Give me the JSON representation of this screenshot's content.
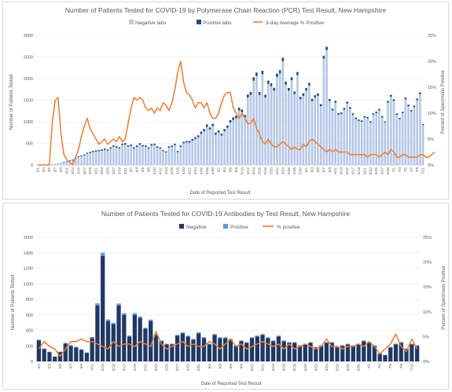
{
  "chart_data": [
    {
      "type": "bar",
      "title": "Number of Patients Tested for COVID-19 by Polymerase Chain Reaction (PCR) Test Result, New Hampshire",
      "xlabel": "Date of Reported Test Result",
      "ylabel": "Number of Patients Tested",
      "y2label": "Percent of Specimens Positive",
      "ylim": [
        0,
        3000
      ],
      "y2lim": [
        0,
        25
      ],
      "yticks": [
        "0",
        "500",
        "1000",
        "1500",
        "2000",
        "2500",
        "3000"
      ],
      "y2ticks": [
        "0%",
        "5%",
        "10%",
        "15%",
        "20%",
        "25%"
      ],
      "legend_position": "top",
      "series": [
        {
          "name": "Negative labs",
          "kind": "bar",
          "color": "#b4c7e7"
        },
        {
          "name": "Positive labs",
          "kind": "bar",
          "color": "#1f4e79"
        },
        {
          "name": "3-day Average % Positive",
          "kind": "line",
          "color": "#ed7d31"
        }
      ],
      "x": [
        "3/1",
        "3/2",
        "3/3",
        "3/4",
        "3/5",
        "3/6",
        "3/7",
        "3/8",
        "3/9",
        "3/10",
        "3/11",
        "3/12",
        "3/13",
        "3/14",
        "3/15",
        "3/16",
        "3/17",
        "3/18",
        "3/19",
        "3/20",
        "3/21",
        "3/22",
        "3/23",
        "3/24",
        "3/25",
        "3/26",
        "3/27",
        "3/28",
        "3/29",
        "3/30",
        "3/31",
        "4/1",
        "4/2",
        "4/3",
        "4/4",
        "4/5",
        "4/6",
        "4/7",
        "4/8",
        "4/9",
        "4/10",
        "4/11",
        "4/12",
        "4/13",
        "4/14",
        "4/15",
        "4/16",
        "4/17",
        "4/18",
        "4/19",
        "4/20",
        "4/21",
        "4/22",
        "4/23",
        "4/24",
        "4/25",
        "4/26",
        "4/27",
        "4/28",
        "4/29",
        "4/30",
        "5/1",
        "5/2",
        "5/3",
        "5/4",
        "5/5",
        "5/6",
        "5/7",
        "5/8",
        "5/9",
        "5/10",
        "5/11",
        "5/12",
        "5/13",
        "5/14",
        "5/15",
        "5/16",
        "5/17",
        "5/18",
        "5/19",
        "5/20",
        "5/21",
        "5/22",
        "5/23",
        "5/24",
        "5/25",
        "5/26",
        "5/27",
        "5/28",
        "5/29",
        "5/30",
        "5/31",
        "6/1",
        "6/2",
        "6/3",
        "6/4",
        "6/5",
        "6/6",
        "6/7",
        "6/8",
        "6/9",
        "6/10",
        "6/11",
        "6/12",
        "6/13",
        "6/14",
        "6/15",
        "6/16",
        "6/17",
        "6/18",
        "6/19",
        "6/20",
        "6/21",
        "6/22",
        "6/23",
        "6/24",
        "6/25",
        "6/26",
        "6/27",
        "6/28",
        "6/29",
        "6/30",
        "7/1",
        "7/2",
        "7/3",
        "7/4",
        "7/5",
        "7/6",
        "7/7",
        "7/8",
        "7/9",
        "7/10",
        "7/11"
      ],
      "x_tick_labels": [
        "3/1",
        "3/3",
        "3/5",
        "3/7",
        "3/9",
        "3/11",
        "3/13",
        "3/15",
        "3/17",
        "3/19",
        "3/21",
        "3/23",
        "3/25",
        "3/27",
        "3/29",
        "3/31",
        "4/2",
        "4/4",
        "4/6",
        "4/8",
        "4/10",
        "4/12",
        "4/14",
        "4/16",
        "4/18",
        "4/20",
        "4/22",
        "4/24",
        "4/26",
        "4/28",
        "4/30",
        "5/2",
        "5/4",
        "5/6",
        "5/8",
        "5/10",
        "5/12",
        "5/14",
        "5/16",
        "5/18",
        "5/20",
        "5/22",
        "5/24",
        "5/26",
        "5/28",
        "5/30",
        "6/1",
        "6/3",
        "6/5",
        "6/7",
        "6/9",
        "6/11",
        "6/13",
        "6/15",
        "6/17",
        "6/19",
        "6/21",
        "6/23",
        "6/25",
        "6/27",
        "6/29",
        "7/1",
        "7/3",
        "7/5",
        "7/7",
        "7/9",
        "7/11"
      ],
      "negative": [
        2,
        2,
        4,
        5,
        8,
        10,
        18,
        28,
        40,
        60,
        70,
        90,
        110,
        150,
        180,
        200,
        220,
        260,
        280,
        300,
        310,
        320,
        330,
        350,
        330,
        380,
        420,
        400,
        380,
        460,
        470,
        420,
        440,
        380,
        420,
        470,
        430,
        420,
        380,
        450,
        460,
        400,
        380,
        320,
        290,
        400,
        420,
        460,
        300,
        420,
        500,
        520,
        520,
        560,
        600,
        640,
        720,
        780,
        880,
        820,
        900,
        700,
        750,
        680,
        780,
        860,
        980,
        1040,
        1080,
        1260,
        1220,
        1100,
        1560,
        1620,
        1950,
        2060,
        1620,
        2100,
        1560,
        1880,
        1820,
        1720,
        2040,
        2120,
        2400,
        1860,
        1720,
        1960,
        1640,
        2080,
        1520,
        1600,
        1720,
        1840,
        1480,
        1560,
        1600,
        1360,
        2460,
        2660,
        1480,
        1260,
        1440,
        1160,
        1180,
        1280,
        1420,
        1300,
        1160,
        1060,
        1020,
        1000,
        1100,
        1080,
        980,
        1160,
        1200,
        1260,
        1100,
        980,
        1440,
        1580,
        1480,
        1160,
        1060,
        1200,
        1520,
        1360,
        1240,
        1340,
        1500,
        1640,
        920,
        1200,
        1220,
        1400
      ],
      "positive": [
        0,
        0,
        1,
        1,
        2,
        3,
        4,
        6,
        8,
        10,
        12,
        14,
        16,
        18,
        20,
        20,
        22,
        24,
        25,
        26,
        28,
        28,
        30,
        30,
        28,
        30,
        32,
        30,
        30,
        34,
        35,
        30,
        32,
        30,
        32,
        34,
        30,
        30,
        28,
        34,
        32,
        28,
        26,
        24,
        22,
        30,
        30,
        32,
        26,
        30,
        34,
        36,
        38,
        40,
        44,
        46,
        50,
        52,
        56,
        50,
        54,
        48,
        50,
        46,
        50,
        54,
        58,
        60,
        62,
        66,
        64,
        60,
        70,
        72,
        78,
        80,
        70,
        80,
        66,
        72,
        70,
        66,
        74,
        76,
        84,
        70,
        62,
        70,
        60,
        70,
        56,
        58,
        60,
        62,
        52,
        54,
        56,
        48,
        70,
        76,
        48,
        40,
        44,
        38,
        38,
        40,
        44,
        40,
        36,
        34,
        32,
        30,
        32,
        32,
        30,
        34,
        34,
        36,
        32,
        28,
        38,
        42,
        40,
        32,
        30,
        32,
        38,
        36,
        32,
        34,
        36,
        40,
        26,
        30,
        30,
        34
      ],
      "pct_positive_3day": [
        0,
        0,
        0,
        0,
        0,
        8,
        12.5,
        13,
        6,
        2,
        1,
        0.5,
        0,
        1.5,
        3,
        5.5,
        7.5,
        9,
        7,
        6,
        5,
        4,
        4.5,
        5,
        4,
        4.5,
        5,
        4.5,
        5.5,
        4.5,
        5,
        8,
        11,
        13,
        12.5,
        13,
        12.5,
        11,
        10.5,
        11,
        10,
        11,
        10.5,
        12,
        11.5,
        10.5,
        12,
        14.5,
        18,
        20,
        16,
        14,
        13.5,
        12.5,
        11,
        12,
        12,
        11,
        12,
        10,
        9,
        9,
        10,
        12,
        13.5,
        14,
        14,
        11,
        10,
        9,
        10,
        9,
        8,
        8,
        9,
        7,
        6,
        4.5,
        4,
        5,
        4,
        3.5,
        3.5,
        4,
        4.5,
        4,
        3.5,
        3,
        3.5,
        3,
        3,
        4,
        3.5,
        4.5,
        5,
        4.5,
        4,
        3.5,
        3,
        2.5,
        3,
        2.5,
        3,
        2.5,
        2.5,
        2.5,
        2.5,
        2,
        2,
        2,
        2,
        2,
        2,
        1.5,
        2,
        2,
        2,
        1.5,
        2,
        2.5,
        2,
        3,
        2.5,
        1.5,
        1.5,
        2,
        2,
        1.5,
        1.5,
        1.5,
        1.5,
        2,
        2,
        1.5,
        1.5,
        2,
        2.5
      ]
    },
    {
      "type": "bar",
      "title": "Number of Patients Tested for COVID-19 Antibodies by Test Result, New Hampshire",
      "xlabel": "Date of Reported Test Result",
      "ylabel": "Number of Patients Tested",
      "y2label": "Percent of Specimens Positive",
      "ylim": [
        0,
        1600
      ],
      "y2lim": [
        0,
        25
      ],
      "yticks": [
        "0",
        "200",
        "400",
        "600",
        "800",
        "1000",
        "1200",
        "1400",
        "1600"
      ],
      "y2ticks": [
        "0%",
        "5%",
        "10%",
        "15%",
        "20%",
        "25%"
      ],
      "legend_position": "top",
      "series": [
        {
          "name": "Negative",
          "kind": "bar",
          "color": "#1f3864"
        },
        {
          "name": "Positive",
          "kind": "bar",
          "color": "#5b9bd5"
        },
        {
          "name": "% positive",
          "kind": "line",
          "color": "#ed7d31"
        }
      ],
      "x": [
        "5/1",
        "5/2",
        "5/3",
        "5/4",
        "5/5",
        "5/6",
        "5/7",
        "5/8",
        "5/9",
        "5/10",
        "5/11",
        "5/12",
        "5/13",
        "5/14",
        "5/15",
        "5/16",
        "5/17",
        "5/18",
        "5/19",
        "5/20",
        "5/21",
        "5/22",
        "5/23",
        "5/24",
        "5/25",
        "5/26",
        "5/27",
        "5/28",
        "5/29",
        "5/30",
        "5/31",
        "6/1",
        "6/2",
        "6/3",
        "6/4",
        "6/5",
        "6/6",
        "6/7",
        "6/8",
        "6/9",
        "6/10",
        "6/11",
        "6/12",
        "6/13",
        "6/14",
        "6/15",
        "6/16",
        "6/17",
        "6/18",
        "6/19",
        "6/20",
        "6/21",
        "6/22",
        "6/23",
        "6/24",
        "6/25",
        "6/26",
        "6/27",
        "6/28",
        "6/29",
        "6/30",
        "7/1",
        "7/2",
        "7/3",
        "7/4",
        "7/5",
        "7/6",
        "7/7",
        "7/8",
        "7/9",
        "7/10",
        "7/11"
      ],
      "x_tick_labels": [
        "5/1",
        "5/3",
        "5/5",
        "5/7",
        "5/9",
        "5/11",
        "5/13",
        "5/15",
        "5/17",
        "5/19",
        "5/21",
        "5/23",
        "5/25",
        "5/27",
        "5/29",
        "5/31",
        "6/2",
        "6/4",
        "6/6",
        "6/8",
        "6/10",
        "6/12",
        "6/14",
        "6/16",
        "6/18",
        "6/20",
        "6/22",
        "6/24",
        "6/26",
        "6/28",
        "6/30",
        "7/2",
        "7/4",
        "7/6",
        "7/8",
        "7/10"
      ],
      "negative": [
        270,
        160,
        120,
        60,
        120,
        230,
        200,
        180,
        150,
        110,
        300,
        720,
        1360,
        520,
        480,
        720,
        600,
        320,
        600,
        560,
        420,
        520,
        340,
        260,
        220,
        220,
        330,
        360,
        320,
        280,
        360,
        300,
        220,
        340,
        300,
        300,
        280,
        200,
        260,
        240,
        300,
        320,
        340,
        300,
        260,
        320,
        260,
        240,
        240,
        200,
        220,
        240,
        180,
        200,
        240,
        240,
        180,
        200,
        220,
        200,
        220,
        260,
        240,
        200,
        100,
        80,
        180,
        220,
        240,
        160,
        220,
        200
      ],
      "positive": [
        10,
        6,
        5,
        3,
        5,
        9,
        8,
        7,
        6,
        5,
        14,
        28,
        40,
        20,
        18,
        26,
        22,
        12,
        22,
        20,
        14,
        18,
        12,
        10,
        8,
        8,
        12,
        14,
        12,
        10,
        14,
        12,
        8,
        12,
        10,
        10,
        10,
        8,
        10,
        8,
        10,
        12,
        12,
        10,
        10,
        12,
        10,
        8,
        8,
        8,
        8,
        8,
        6,
        8,
        8,
        8,
        6,
        8,
        8,
        8,
        8,
        10,
        8,
        6,
        4,
        4,
        6,
        8,
        10,
        6,
        8,
        8
      ],
      "pct_positive": [
        2.5,
        4,
        3,
        2.5,
        1,
        2.5,
        4,
        4,
        4.5,
        4,
        4,
        3.5,
        3,
        2.5,
        4,
        3,
        3.5,
        3.5,
        3,
        4,
        3.5,
        3,
        6,
        3.5,
        2.5,
        3,
        3.5,
        4,
        3,
        3.5,
        3,
        3,
        4,
        3.5,
        2.5,
        3.5,
        4.5,
        3,
        3.5,
        2.5,
        3,
        3.5,
        4,
        3.5,
        3,
        3.5,
        2.5,
        3.5,
        2.5,
        3,
        3.5,
        3,
        2.5,
        3,
        4.5,
        3,
        3,
        2.5,
        3,
        3,
        3.5,
        3,
        4,
        3,
        1.5,
        2.5,
        3.5,
        5.5,
        3,
        2,
        4.5,
        2.5
      ]
    }
  ]
}
